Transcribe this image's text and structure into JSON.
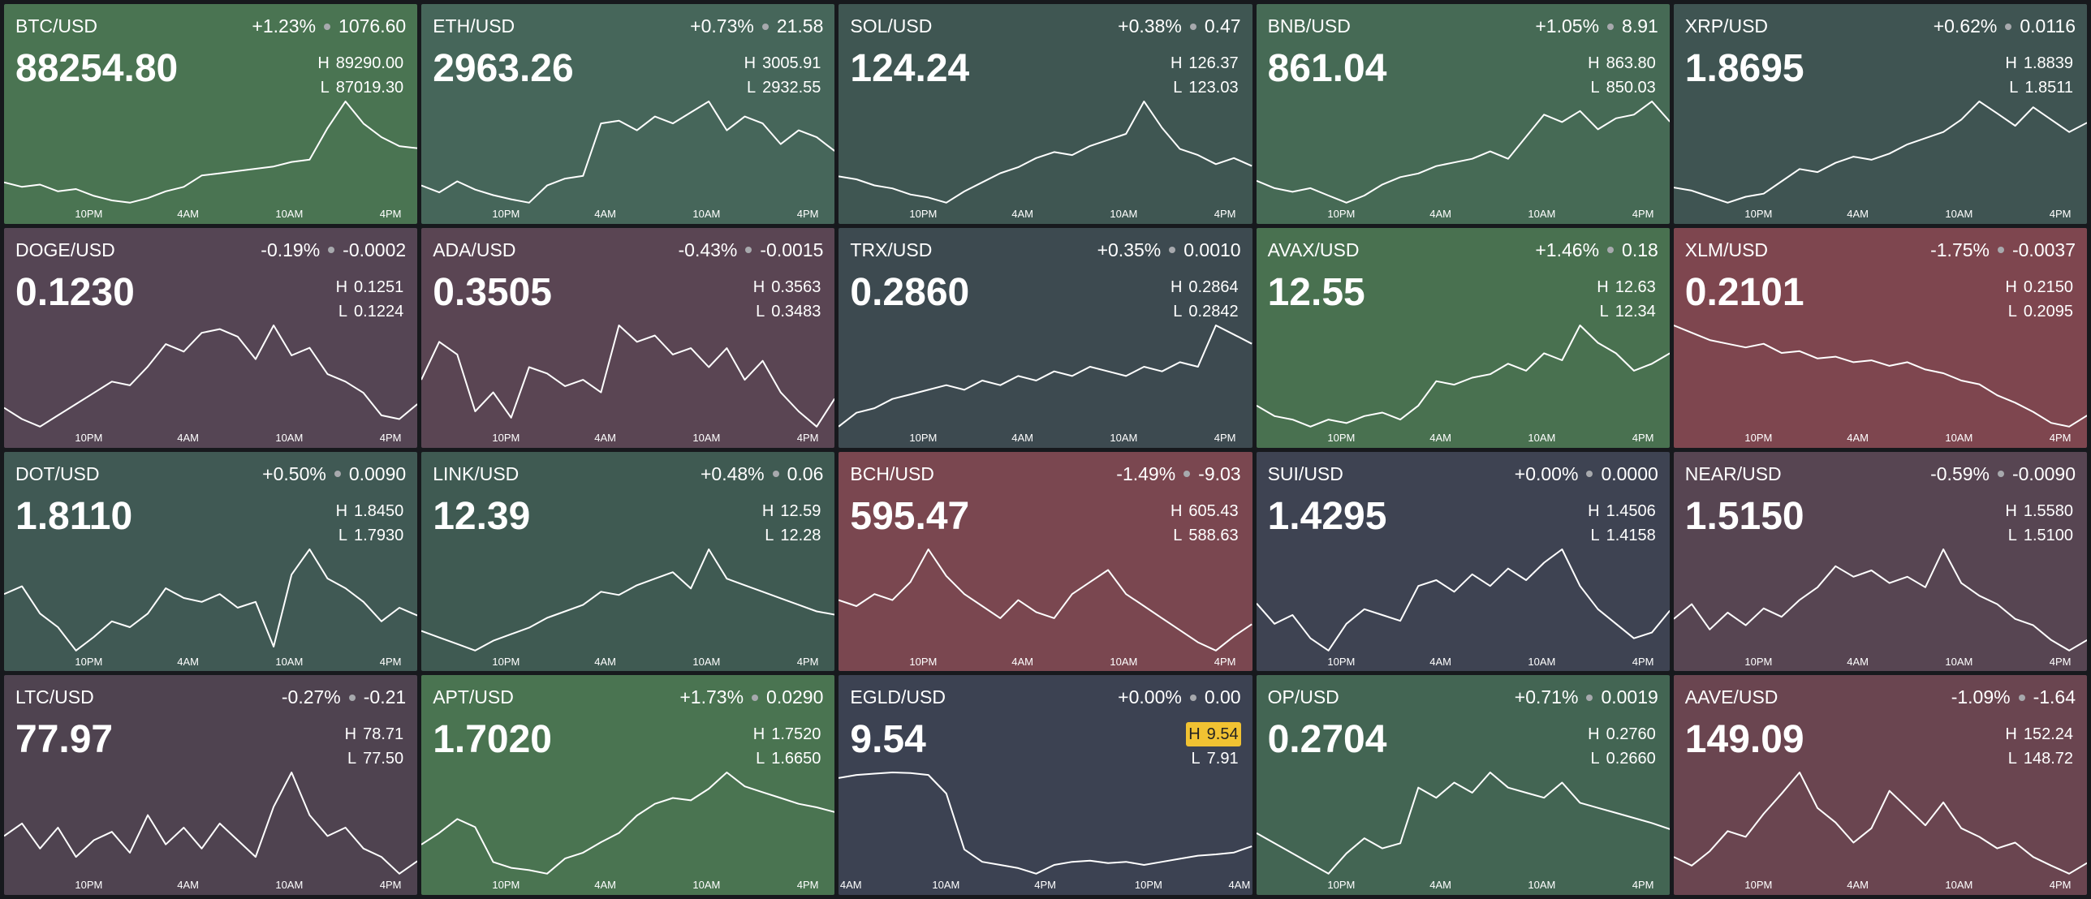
{
  "labels": {
    "high": "H",
    "low": "L"
  },
  "tiles": [
    {
      "pair": "BTC/USD",
      "change_pct": "+1.23%",
      "change": "1076.60",
      "price": "88254.80",
      "high": "89290.00",
      "low": "87019.30",
      "color": "#4a7452",
      "x_labels": [
        "10PM",
        "4AM",
        "10AM",
        "4PM"
      ],
      "line": [
        87500,
        87400,
        87450,
        87300,
        87350,
        87200,
        87100,
        87050,
        87150,
        87300,
        87400,
        87650,
        87700,
        87750,
        87800,
        87850,
        87950,
        88000,
        88700,
        89290,
        88800,
        88500,
        88300,
        88254.8
      ]
    },
    {
      "pair": "ETH/USD",
      "change_pct": "+0.73%",
      "change": "21.58",
      "price": "2963.26",
      "high": "3005.91",
      "low": "2932.55",
      "color": "#46665a",
      "x_labels": [
        "10PM",
        "4AM",
        "10AM",
        "4PM"
      ],
      "line": [
        2945,
        2940,
        2948,
        2942,
        2938,
        2935,
        2932.55,
        2945,
        2950,
        2952,
        2990,
        2992,
        2985,
        2995,
        2990,
        2998,
        3005.91,
        2985,
        2995,
        2990,
        2975,
        2985,
        2980,
        2970
      ]
    },
    {
      "pair": "SOL/USD",
      "change_pct": "+0.38%",
      "change": "0.47",
      "price": "124.24",
      "high": "126.37",
      "low": "123.03",
      "color": "#3f5652",
      "x_labels": [
        "10PM",
        "4AM",
        "10AM",
        "4PM"
      ],
      "line": [
        123.9,
        123.8,
        123.6,
        123.5,
        123.3,
        123.2,
        123.03,
        123.4,
        123.7,
        124.0,
        124.2,
        124.5,
        124.7,
        124.6,
        124.9,
        125.1,
        125.3,
        126.37,
        125.5,
        124.8,
        124.6,
        124.3,
        124.5,
        124.24
      ]
    },
    {
      "pair": "BNB/USD",
      "change_pct": "+1.05%",
      "change": "8.91",
      "price": "861.04",
      "high": "863.80",
      "low": "850.03",
      "color": "#466a55",
      "x_labels": [
        "10PM",
        "4AM",
        "10AM",
        "4PM"
      ],
      "line": [
        853,
        852,
        851.5,
        852,
        851,
        850.03,
        851,
        852.5,
        853.5,
        854,
        855,
        855.5,
        856,
        857,
        856,
        859,
        862,
        861,
        862.5,
        860,
        861.5,
        862,
        863.8,
        861.04
      ]
    },
    {
      "pair": "XRP/USD",
      "change_pct": "+0.62%",
      "change": "0.0116",
      "price": "1.8695",
      "high": "1.8839",
      "low": "1.8511",
      "color": "#3f5452",
      "x_labels": [
        "10PM",
        "4AM",
        "10AM",
        "4PM"
      ],
      "line": [
        1.856,
        1.855,
        1.853,
        1.8511,
        1.853,
        1.854,
        1.858,
        1.862,
        1.861,
        1.864,
        1.866,
        1.865,
        1.867,
        1.87,
        1.872,
        1.874,
        1.878,
        1.8839,
        1.88,
        1.876,
        1.882,
        1.878,
        1.874,
        1.877
      ]
    },
    {
      "pair": "DOGE/USD",
      "change_pct": "-0.19%",
      "change": "-0.0002",
      "price": "0.1230",
      "high": "0.1251",
      "low": "0.1224",
      "color": "#554554",
      "x_labels": [
        "10PM",
        "4AM",
        "10AM",
        "4PM"
      ],
      "line": [
        0.1229,
        0.1226,
        0.1224,
        0.1227,
        0.123,
        0.1233,
        0.1236,
        0.1235,
        0.124,
        0.1246,
        0.1244,
        0.1249,
        0.125,
        0.1248,
        0.1242,
        0.1251,
        0.1243,
        0.1245,
        0.1238,
        0.1236,
        0.1233,
        0.1227,
        0.1226,
        0.123
      ]
    },
    {
      "pair": "ADA/USD",
      "change_pct": "-0.43%",
      "change": "-0.0015",
      "price": "0.3505",
      "high": "0.3563",
      "low": "0.3483",
      "color": "#5a4553",
      "x_labels": [
        "10PM",
        "4AM",
        "10AM",
        "4PM"
      ],
      "line": [
        0.352,
        0.355,
        0.354,
        0.3495,
        0.351,
        0.349,
        0.353,
        0.3525,
        0.3515,
        0.352,
        0.351,
        0.3563,
        0.355,
        0.3555,
        0.354,
        0.3545,
        0.353,
        0.3545,
        0.352,
        0.3535,
        0.351,
        0.3495,
        0.3483,
        0.3505
      ]
    },
    {
      "pair": "TRX/USD",
      "change_pct": "+0.35%",
      "change": "0.0010",
      "price": "0.2860",
      "high": "0.2864",
      "low": "0.2842",
      "color": "#3d4a50",
      "x_labels": [
        "10PM",
        "4AM",
        "10AM",
        "4PM"
      ],
      "line": [
        0.2842,
        0.2845,
        0.2846,
        0.2848,
        0.2849,
        0.285,
        0.2851,
        0.285,
        0.2852,
        0.2851,
        0.2853,
        0.2852,
        0.2854,
        0.2853,
        0.2855,
        0.2854,
        0.2853,
        0.2855,
        0.2854,
        0.2856,
        0.2855,
        0.2864,
        0.2862,
        0.286
      ]
    },
    {
      "pair": "AVAX/USD",
      "change_pct": "+1.46%",
      "change": "0.18",
      "price": "12.55",
      "high": "12.63",
      "low": "12.34",
      "color": "#497150",
      "x_labels": [
        "10PM",
        "4AM",
        "10AM",
        "4PM"
      ],
      "line": [
        12.4,
        12.37,
        12.36,
        12.34,
        12.36,
        12.35,
        12.37,
        12.38,
        12.36,
        12.4,
        12.47,
        12.46,
        12.48,
        12.49,
        12.52,
        12.5,
        12.55,
        12.53,
        12.63,
        12.58,
        12.55,
        12.5,
        12.52,
        12.55
      ]
    },
    {
      "pair": "XLM/USD",
      "change_pct": "-1.75%",
      "change": "-0.0037",
      "price": "0.2101",
      "high": "0.2150",
      "low": "0.2095",
      "color": "#7e464f",
      "x_labels": [
        "10PM",
        "4AM",
        "10AM",
        "4PM"
      ],
      "line": [
        0.215,
        0.2146,
        0.2142,
        0.214,
        0.2138,
        0.214,
        0.2135,
        0.2136,
        0.2132,
        0.2133,
        0.213,
        0.2131,
        0.2128,
        0.213,
        0.2126,
        0.2124,
        0.212,
        0.2118,
        0.2112,
        0.2108,
        0.2103,
        0.2097,
        0.2095,
        0.2101
      ]
    },
    {
      "pair": "DOT/USD",
      "change_pct": "+0.50%",
      "change": "0.0090",
      "price": "1.8110",
      "high": "1.8450",
      "low": "1.7930",
      "color": "#405954",
      "x_labels": [
        "10PM",
        "4AM",
        "10AM",
        "4PM"
      ],
      "line": [
        1.822,
        1.826,
        1.812,
        1.805,
        1.793,
        1.8,
        1.808,
        1.805,
        1.812,
        1.825,
        1.82,
        1.818,
        1.822,
        1.815,
        1.818,
        1.795,
        1.832,
        1.845,
        1.83,
        1.825,
        1.818,
        1.808,
        1.815,
        1.811
      ]
    },
    {
      "pair": "LINK/USD",
      "change_pct": "+0.48%",
      "change": "0.06",
      "price": "12.39",
      "high": "12.59",
      "low": "12.28",
      "color": "#3f5a52",
      "x_labels": [
        "10PM",
        "4AM",
        "10AM",
        "4PM"
      ],
      "line": [
        12.34,
        12.32,
        12.3,
        12.28,
        12.31,
        12.33,
        12.35,
        12.38,
        12.4,
        12.42,
        12.46,
        12.45,
        12.48,
        12.5,
        12.52,
        12.47,
        12.59,
        12.5,
        12.48,
        12.46,
        12.44,
        12.42,
        12.4,
        12.39
      ]
    },
    {
      "pair": "BCH/USD",
      "change_pct": "-1.49%",
      "change": "-9.03",
      "price": "595.47",
      "high": "605.43",
      "low": "588.63",
      "color": "#7a4750",
      "x_labels": [
        "10PM",
        "4AM",
        "10AM",
        "4PM"
      ],
      "line": [
        597,
        596,
        598,
        597,
        600,
        605.43,
        601,
        598,
        596,
        594,
        597,
        595,
        594,
        598,
        600,
        602,
        598,
        596,
        594,
        592,
        590,
        588.63,
        591,
        593
      ]
    },
    {
      "pair": "SUI/USD",
      "change_pct": "+0.00%",
      "change": "0.0000",
      "price": "1.4295",
      "high": "1.4506",
      "low": "1.4158",
      "color": "#3e4352",
      "x_labels": [
        "10PM",
        "4AM",
        "10AM",
        "4PM"
      ],
      "line": [
        1.432,
        1.425,
        1.428,
        1.42,
        1.4158,
        1.425,
        1.43,
        1.428,
        1.426,
        1.438,
        1.44,
        1.436,
        1.442,
        1.438,
        1.444,
        1.44,
        1.446,
        1.4506,
        1.438,
        1.43,
        1.425,
        1.42,
        1.422,
        1.4295
      ]
    },
    {
      "pair": "NEAR/USD",
      "change_pct": "-0.59%",
      "change": "-0.0090",
      "price": "1.5150",
      "high": "1.5580",
      "low": "1.5100",
      "color": "#574552",
      "x_labels": [
        "10PM",
        "4AM",
        "10AM",
        "4PM"
      ],
      "line": [
        1.525,
        1.532,
        1.52,
        1.528,
        1.522,
        1.53,
        1.526,
        1.534,
        1.54,
        1.55,
        1.545,
        1.548,
        1.542,
        1.545,
        1.54,
        1.558,
        1.542,
        1.536,
        1.532,
        1.525,
        1.522,
        1.515,
        1.51,
        1.515
      ]
    },
    {
      "pair": "LTC/USD",
      "change_pct": "-0.27%",
      "change": "-0.21",
      "price": "77.97",
      "high": "78.71",
      "low": "77.50",
      "color": "#4f4350",
      "x_labels": [
        "10PM",
        "4AM",
        "10AM",
        "4PM"
      ],
      "line": [
        77.95,
        78.1,
        77.8,
        78.05,
        77.7,
        77.9,
        78.0,
        77.75,
        78.2,
        77.85,
        78.05,
        77.8,
        78.1,
        77.9,
        77.7,
        78.3,
        78.71,
        78.2,
        77.95,
        78.05,
        77.8,
        77.7,
        77.5,
        77.65
      ]
    },
    {
      "pair": "APT/USD",
      "change_pct": "+1.73%",
      "change": "0.0290",
      "price": "1.7020",
      "high": "1.7520",
      "low": "1.6650",
      "color": "#4a7451",
      "x_labels": [
        "10PM",
        "4AM",
        "10AM",
        "4PM"
      ],
      "line": [
        1.69,
        1.7,
        1.712,
        1.705,
        1.675,
        1.67,
        1.668,
        1.665,
        1.678,
        1.683,
        1.692,
        1.7,
        1.715,
        1.725,
        1.73,
        1.728,
        1.738,
        1.752,
        1.74,
        1.735,
        1.73,
        1.725,
        1.722,
        1.718
      ]
    },
    {
      "pair": "EGLD/USD",
      "change_pct": "+0.00%",
      "change": "0.00",
      "price": "9.54",
      "high": "9.54",
      "low": "7.91",
      "color": "#3c4252",
      "highlight": "high",
      "x_labels": [
        "4AM",
        "10AM",
        "4PM",
        "10PM",
        "4AM"
      ],
      "line": [
        9.45,
        9.5,
        9.52,
        9.54,
        9.53,
        9.5,
        9.2,
        8.3,
        8.1,
        8.05,
        8.0,
        7.91,
        8.05,
        8.1,
        8.12,
        8.08,
        8.1,
        8.05,
        8.1,
        8.15,
        8.2,
        8.22,
        8.25,
        8.35
      ]
    },
    {
      "pair": "OP/USD",
      "change_pct": "+0.71%",
      "change": "0.0019",
      "price": "0.2704",
      "high": "0.2760",
      "low": "0.2660",
      "color": "#436553",
      "x_labels": [
        "10PM",
        "4AM",
        "10AM",
        "4PM"
      ],
      "line": [
        0.27,
        0.269,
        0.268,
        0.267,
        0.266,
        0.268,
        0.2695,
        0.2685,
        0.269,
        0.2745,
        0.2735,
        0.275,
        0.274,
        0.276,
        0.2745,
        0.274,
        0.2735,
        0.275,
        0.273,
        0.2725,
        0.272,
        0.2715,
        0.271,
        0.2704
      ]
    },
    {
      "pair": "AAVE/USD",
      "change_pct": "-1.09%",
      "change": "-1.64",
      "price": "149.09",
      "high": "152.24",
      "low": "148.72",
      "color": "#6a4550",
      "x_labels": [
        "10PM",
        "4AM",
        "10AM",
        "4PM"
      ],
      "line": [
        149.3,
        149.0,
        149.5,
        150.2,
        150.0,
        150.8,
        151.5,
        152.24,
        151.0,
        150.5,
        149.8,
        150.3,
        151.6,
        151.0,
        150.4,
        151.2,
        150.3,
        150.0,
        149.6,
        149.8,
        149.3,
        149.0,
        148.72,
        149.09
      ]
    }
  ]
}
